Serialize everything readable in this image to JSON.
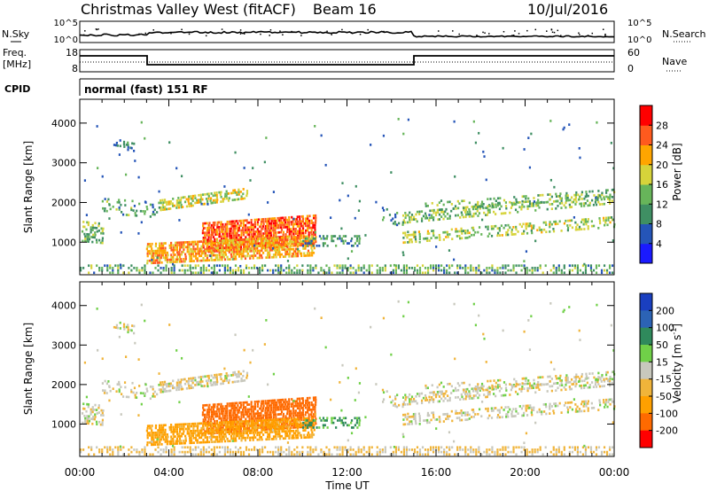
{
  "header": {
    "station": "Christmas Valley West (fitACF)",
    "beam": "Beam 16",
    "date": "10/Jul/2016"
  },
  "top_panels": {
    "nsky_label": "N.Sky",
    "nsearch_label": "N.Search",
    "noise_ticks_left": [
      "10^5",
      "10^0"
    ],
    "noise_ticks_right": [
      "10^5",
      "10^0"
    ],
    "freq_label_1": "Freq.",
    "freq_label_2": "[MHz]",
    "freq_ticks": [
      "18",
      "8"
    ],
    "nave_label": "Nave",
    "nave_ticks": [
      "60",
      "0"
    ],
    "cpid_label": "CPID",
    "cpid_value": "normal (fast) 151 RF"
  },
  "chart_data": [
    {
      "type": "heatmap",
      "panel": "power",
      "ylabel": "Slant Range [km]",
      "yticks": [
        "1000",
        "2000",
        "3000",
        "4000"
      ],
      "ylim": [
        180,
        4600
      ],
      "xlim": [
        0,
        24
      ],
      "colorbar_label": "Power [dB]",
      "colorbar_ticks": [
        "4",
        "8",
        "12",
        "16",
        "20",
        "24",
        "28"
      ],
      "colorbar_range": [
        0,
        32
      ],
      "colors": [
        "#1a1aff",
        "#2555b8",
        "#3f8f63",
        "#67b55a",
        "#d6d33a",
        "#ffa500",
        "#ff5a1e",
        "#ff0000"
      ]
    },
    {
      "type": "heatmap",
      "panel": "velocity",
      "ylabel": "Slant Range [km]",
      "yticks": [
        "1000",
        "2000",
        "3000",
        "4000"
      ],
      "ylim": [
        180,
        4600
      ],
      "xlim": [
        0,
        24
      ],
      "colorbar_label": "Velocity [m s",
      "colorbar_label_sup": "-1",
      "colorbar_label_close": "]",
      "colorbar_ticks": [
        "200",
        "100",
        "50",
        "15",
        "-15",
        "-50",
        "-100",
        "-200"
      ],
      "colors": [
        "#1a3fc0",
        "#2c63b5",
        "#2f8a5c",
        "#70d048",
        "#c8c8bd",
        "#f0b43a",
        "#ffa000",
        "#ff6a00",
        "#ff0000"
      ]
    }
  ],
  "xaxis": {
    "ticks": [
      "00:00",
      "04:00",
      "08:00",
      "12:00",
      "16:00",
      "20:00",
      "00:00"
    ],
    "label": "Time UT"
  }
}
